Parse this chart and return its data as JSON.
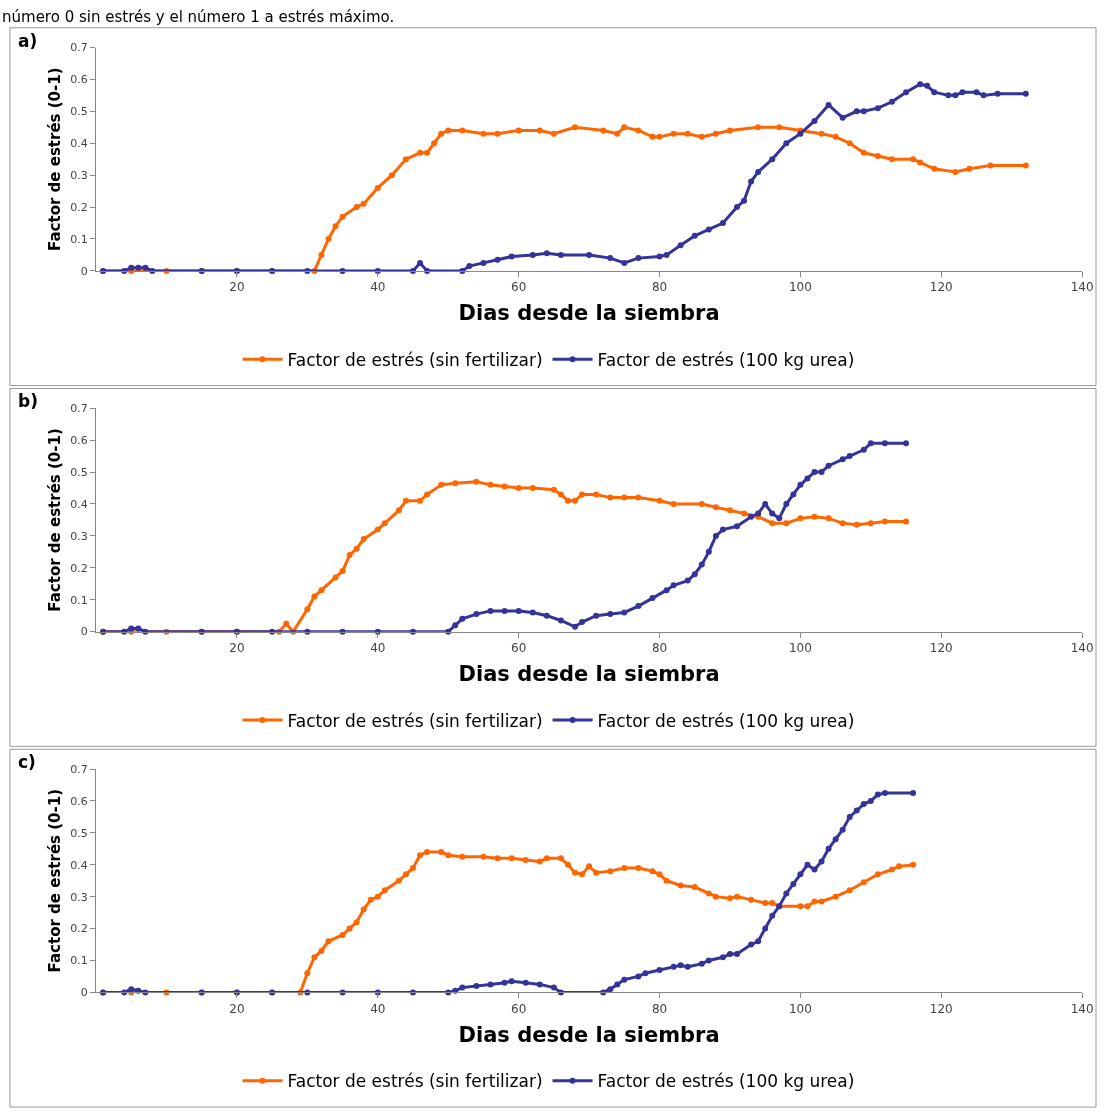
{
  "chart_data": [
    {
      "type": "line",
      "title": "a)",
      "xlabel": "Dias desde la siembra",
      "ylabel": "Factor de estrés (0-1)",
      "annotations": [
        "número 0 sin estrés y el número 1 a estrés máximo."
      ],
      "xlim": [
        0,
        140
      ],
      "xticks": [
        20,
        40,
        60,
        80,
        100,
        120,
        140
      ],
      "ylim": [
        0,
        0.7
      ],
      "yticks": [
        0,
        0.1,
        0.2,
        0.3,
        0.4,
        0.5,
        0.6,
        0.7
      ],
      "legend": "bottom",
      "marker": "circle",
      "line_style": "solid",
      "series": [
        {
          "name": "Factor de estrés (sin fertilizar)",
          "color": "#ff6600",
          "x": [
            1,
            5,
            10,
            15,
            20,
            25,
            31,
            32,
            33,
            34,
            35,
            37,
            38,
            40,
            42,
            44,
            46,
            47,
            48,
            49,
            50,
            52,
            55,
            57,
            60,
            63,
            65,
            68,
            72,
            74,
            75,
            77,
            79,
            80,
            82,
            84,
            86,
            88,
            90,
            94,
            97,
            100,
            103,
            105,
            107,
            109,
            111,
            113,
            116,
            117,
            119,
            122,
            124,
            127,
            132
          ],
          "values": [
            0,
            0,
            0,
            0,
            0,
            0,
            0,
            0.05,
            0.1,
            0.14,
            0.17,
            0.2,
            0.21,
            0.26,
            0.3,
            0.35,
            0.37,
            0.37,
            0.4,
            0.43,
            0.44,
            0.44,
            0.43,
            0.43,
            0.44,
            0.44,
            0.43,
            0.45,
            0.44,
            0.43,
            0.45,
            0.44,
            0.42,
            0.42,
            0.43,
            0.43,
            0.42,
            0.43,
            0.44,
            0.45,
            0.45,
            0.44,
            0.43,
            0.42,
            0.4,
            0.37,
            0.36,
            0.35,
            0.35,
            0.34,
            0.32,
            0.31,
            0.32,
            0.33,
            0.33
          ]
        },
        {
          "name": "Factor de estrés (100 kg urea)",
          "color": "#333399",
          "x": [
            1,
            4,
            5,
            6,
            7,
            8,
            15,
            20,
            25,
            30,
            35,
            40,
            45,
            46,
            47,
            52,
            53,
            55,
            57,
            59,
            62,
            64,
            66,
            70,
            73,
            75,
            77,
            80,
            81,
            83,
            85,
            87,
            89,
            91,
            92,
            93,
            94,
            96,
            98,
            100,
            102,
            104,
            106,
            108,
            109,
            111,
            113,
            115,
            117,
            118,
            119,
            121,
            122,
            123,
            125,
            126,
            128,
            132
          ],
          "values": [
            0,
            0,
            0.01,
            0.01,
            0.01,
            0,
            0,
            0,
            0,
            0,
            0,
            0,
            0,
            0.025,
            0,
            0,
            0.015,
            0.025,
            0.035,
            0.045,
            0.05,
            0.055,
            0.05,
            0.05,
            0.04,
            0.025,
            0.04,
            0.045,
            0.05,
            0.08,
            0.11,
            0.13,
            0.15,
            0.2,
            0.22,
            0.28,
            0.31,
            0.35,
            0.4,
            0.43,
            0.47,
            0.52,
            0.48,
            0.5,
            0.5,
            0.51,
            0.53,
            0.56,
            0.585,
            0.58,
            0.56,
            0.55,
            0.55,
            0.56,
            0.56,
            0.55,
            0.555,
            0.555
          ]
        }
      ]
    },
    {
      "type": "line",
      "title": "b)",
      "xlabel": "Dias desde la siembra",
      "ylabel": "Factor de estrés (0-1)",
      "xlim": [
        0,
        140
      ],
      "xticks": [
        20,
        40,
        60,
        80,
        100,
        120,
        140
      ],
      "ylim": [
        0,
        0.7
      ],
      "yticks": [
        0,
        0.1,
        0.2,
        0.3,
        0.4,
        0.5,
        0.6,
        0.7
      ],
      "legend": "bottom",
      "marker": "circle",
      "line_style": "solid",
      "series": [
        {
          "name": "Factor de estrés (sin fertilizar)",
          "color": "#ff6600",
          "x": [
            1,
            5,
            10,
            15,
            20,
            26,
            27,
            28,
            30,
            31,
            32,
            34,
            35,
            36,
            37,
            38,
            40,
            41,
            43,
            44,
            46,
            47,
            49,
            51,
            54,
            56,
            58,
            60,
            62,
            65,
            66,
            67,
            68,
            69,
            71,
            73,
            75,
            77,
            80,
            82,
            86,
            88,
            90,
            92,
            94,
            96,
            98,
            100,
            102,
            104,
            106,
            108,
            110,
            112,
            115
          ],
          "values": [
            0,
            0,
            0,
            0,
            0,
            0,
            0.025,
            0,
            0.07,
            0.11,
            0.13,
            0.17,
            0.19,
            0.24,
            0.26,
            0.29,
            0.32,
            0.34,
            0.38,
            0.41,
            0.41,
            0.43,
            0.46,
            0.465,
            0.47,
            0.46,
            0.455,
            0.45,
            0.45,
            0.445,
            0.43,
            0.41,
            0.41,
            0.43,
            0.43,
            0.42,
            0.42,
            0.42,
            0.41,
            0.4,
            0.4,
            0.39,
            0.38,
            0.37,
            0.36,
            0.34,
            0.34,
            0.355,
            0.36,
            0.355,
            0.34,
            0.335,
            0.34,
            0.345,
            0.345
          ]
        },
        {
          "name": "Factor de estrés (100 kg urea)",
          "color": "#333399",
          "x": [
            1,
            4,
            5,
            6,
            7,
            15,
            20,
            25,
            30,
            35,
            40,
            45,
            50,
            51,
            52,
            54,
            56,
            58,
            60,
            62,
            64,
            66,
            68,
            69,
            71,
            73,
            75,
            77,
            79,
            81,
            82,
            84,
            85,
            86,
            87,
            88,
            89,
            91,
            93,
            94,
            95,
            96,
            97,
            98,
            99,
            100,
            101,
            102,
            103,
            104,
            106,
            107,
            109,
            110,
            112,
            115
          ],
          "values": [
            0,
            0,
            0.01,
            0.01,
            0,
            0,
            0,
            0,
            0,
            0,
            0,
            0,
            0,
            0.02,
            0.04,
            0.055,
            0.065,
            0.065,
            0.065,
            0.06,
            0.05,
            0.035,
            0.015,
            0.03,
            0.05,
            0.055,
            0.06,
            0.08,
            0.105,
            0.13,
            0.145,
            0.16,
            0.18,
            0.21,
            0.25,
            0.3,
            0.32,
            0.33,
            0.36,
            0.37,
            0.4,
            0.37,
            0.355,
            0.4,
            0.43,
            0.46,
            0.48,
            0.5,
            0.5,
            0.52,
            0.54,
            0.55,
            0.57,
            0.59,
            0.59,
            0.59
          ]
        }
      ]
    },
    {
      "type": "line",
      "title": "c)",
      "xlabel": "Dias desde la siembra",
      "ylabel": "Factor de estrés (0-1)",
      "xlim": [
        0,
        140
      ],
      "xticks": [
        20,
        40,
        60,
        80,
        100,
        120,
        140
      ],
      "ylim": [
        0,
        0.7
      ],
      "yticks": [
        0,
        0.1,
        0.2,
        0.3,
        0.4,
        0.5,
        0.6,
        0.7
      ],
      "legend": "bottom",
      "marker": "circle",
      "line_style": "solid",
      "series": [
        {
          "name": "Factor de estrés (sin fertilizar)",
          "color": "#ff6600",
          "x": [
            1,
            5,
            10,
            15,
            20,
            25,
            29,
            30,
            31,
            32,
            33,
            35,
            36,
            37,
            38,
            39,
            40,
            41,
            43,
            44,
            45,
            46,
            47,
            49,
            50,
            52,
            55,
            57,
            59,
            61,
            63,
            64,
            66,
            67,
            68,
            69,
            70,
            71,
            73,
            75,
            77,
            79,
            80,
            81,
            83,
            85,
            87,
            88,
            90,
            91,
            93,
            95,
            96,
            97,
            100,
            101,
            102,
            103,
            105,
            107,
            109,
            111,
            113,
            114,
            116
          ],
          "values": [
            0,
            0,
            0,
            0,
            0,
            0,
            0,
            0.06,
            0.11,
            0.13,
            0.16,
            0.18,
            0.2,
            0.22,
            0.26,
            0.29,
            0.3,
            0.32,
            0.35,
            0.37,
            0.39,
            0.43,
            0.44,
            0.44,
            0.43,
            0.425,
            0.425,
            0.42,
            0.42,
            0.415,
            0.41,
            0.42,
            0.42,
            0.4,
            0.375,
            0.37,
            0.395,
            0.375,
            0.38,
            0.39,
            0.39,
            0.38,
            0.37,
            0.35,
            0.335,
            0.33,
            0.31,
            0.3,
            0.295,
            0.3,
            0.29,
            0.28,
            0.28,
            0.27,
            0.27,
            0.27,
            0.285,
            0.285,
            0.3,
            0.32,
            0.345,
            0.37,
            0.385,
            0.395,
            0.4
          ]
        },
        {
          "name": "Factor de estrés (100 kg urea)",
          "color": "#333399",
          "x": [
            1,
            4,
            5,
            6,
            7,
            15,
            20,
            25,
            30,
            35,
            40,
            45,
            50,
            51,
            52,
            54,
            56,
            58,
            59,
            61,
            63,
            65,
            66,
            72,
            73,
            74,
            75,
            77,
            78,
            80,
            82,
            83,
            84,
            86,
            87,
            89,
            90,
            91,
            93,
            94,
            95,
            96,
            97,
            98,
            99,
            100,
            101,
            102,
            103,
            104,
            105,
            106,
            107,
            108,
            109,
            110,
            111,
            112,
            116
          ],
          "values": [
            0,
            0,
            0.01,
            0.005,
            0,
            0,
            0,
            0,
            0,
            0,
            0,
            0,
            0,
            0.005,
            0.015,
            0.02,
            0.025,
            0.03,
            0.035,
            0.03,
            0.025,
            0.015,
            0,
            0,
            0.01,
            0.025,
            0.04,
            0.05,
            0.06,
            0.07,
            0.08,
            0.085,
            0.08,
            0.09,
            0.1,
            0.11,
            0.12,
            0.12,
            0.15,
            0.16,
            0.2,
            0.24,
            0.27,
            0.31,
            0.34,
            0.37,
            0.4,
            0.385,
            0.41,
            0.45,
            0.48,
            0.51,
            0.55,
            0.57,
            0.59,
            0.6,
            0.62,
            0.625,
            0.625
          ]
        }
      ]
    }
  ]
}
